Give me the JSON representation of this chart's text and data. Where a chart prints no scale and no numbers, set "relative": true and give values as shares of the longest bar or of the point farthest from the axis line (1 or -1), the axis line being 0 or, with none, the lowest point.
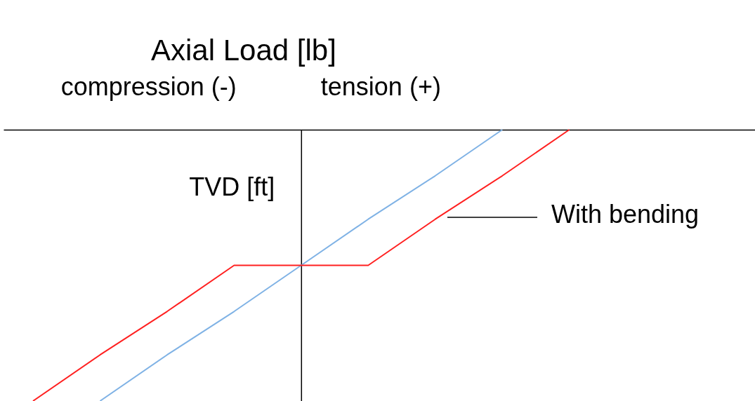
{
  "chart_data": {
    "type": "line",
    "title": "Axial Load [lb]",
    "ylabel": "TVD [ft]",
    "annotations": [
      "compression (-)",
      "tension (+)"
    ],
    "categories": [
      null,
      null,
      null,
      null,
      null,
      null,
      null,
      null,
      null
    ],
    "relative": true,
    "legend": false,
    "grid": false,
    "series": [
      {
        "color": "#7fb2e5",
        "values": [
          null,
          -1,
          -0.83,
          -0.67,
          -0.5,
          -0.33,
          -0.17,
          0,
          null
        ]
      },
      {
        "name": "With bending",
        "color": "#ff2020",
        "values": [
          -1,
          -0.83,
          -0.67,
          -0.5,
          -0.5,
          -0.5,
          -0.33,
          -0.17,
          0
        ]
      }
    ]
  }
}
